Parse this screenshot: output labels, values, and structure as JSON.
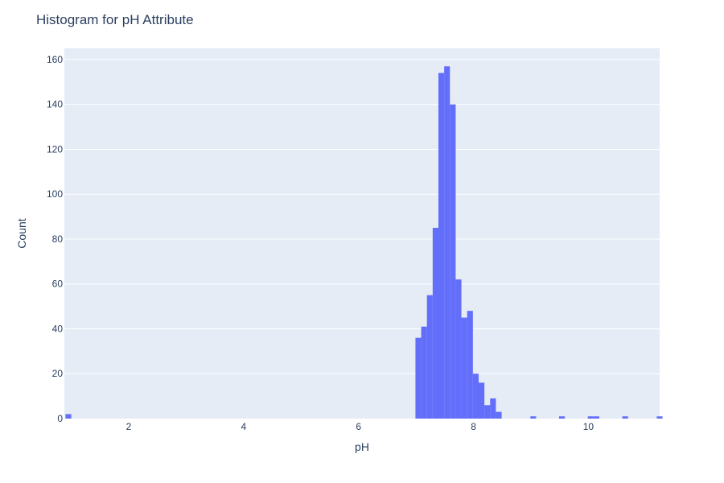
{
  "chart_data": {
    "type": "bar",
    "title": "Histogram for pH Attribute",
    "xlabel": "pH",
    "ylabel": "Count",
    "xlim": [
      0.88,
      11.24
    ],
    "ylim": [
      0,
      165
    ],
    "x_ticks": [
      2,
      4,
      6,
      8,
      10
    ],
    "y_ticks": [
      0,
      20,
      40,
      60,
      80,
      100,
      120,
      140,
      160
    ],
    "grid": true,
    "bin_width": 0.1,
    "bins": [
      {
        "x0": 0.9,
        "count": 2
      },
      {
        "x0": 6.99,
        "count": 36
      },
      {
        "x0": 7.09,
        "count": 41
      },
      {
        "x0": 7.19,
        "count": 55
      },
      {
        "x0": 7.29,
        "count": 85
      },
      {
        "x0": 7.39,
        "count": 154
      },
      {
        "x0": 7.49,
        "count": 157
      },
      {
        "x0": 7.59,
        "count": 140
      },
      {
        "x0": 7.69,
        "count": 62
      },
      {
        "x0": 7.79,
        "count": 45
      },
      {
        "x0": 7.89,
        "count": 48
      },
      {
        "x0": 7.99,
        "count": 20
      },
      {
        "x0": 8.09,
        "count": 16
      },
      {
        "x0": 8.19,
        "count": 6
      },
      {
        "x0": 8.29,
        "count": 9
      },
      {
        "x0": 8.39,
        "count": 3
      },
      {
        "x0": 8.99,
        "count": 1
      },
      {
        "x0": 9.49,
        "count": 1
      },
      {
        "x0": 9.99,
        "count": 1
      },
      {
        "x0": 10.09,
        "count": 1
      },
      {
        "x0": 10.59,
        "count": 1
      },
      {
        "x0": 11.19,
        "count": 1
      }
    ],
    "colors": {
      "bar": "#636efa",
      "plot_bg": "#e5ecf6",
      "grid": "#ffffff",
      "text": "#2a3f5f"
    }
  }
}
